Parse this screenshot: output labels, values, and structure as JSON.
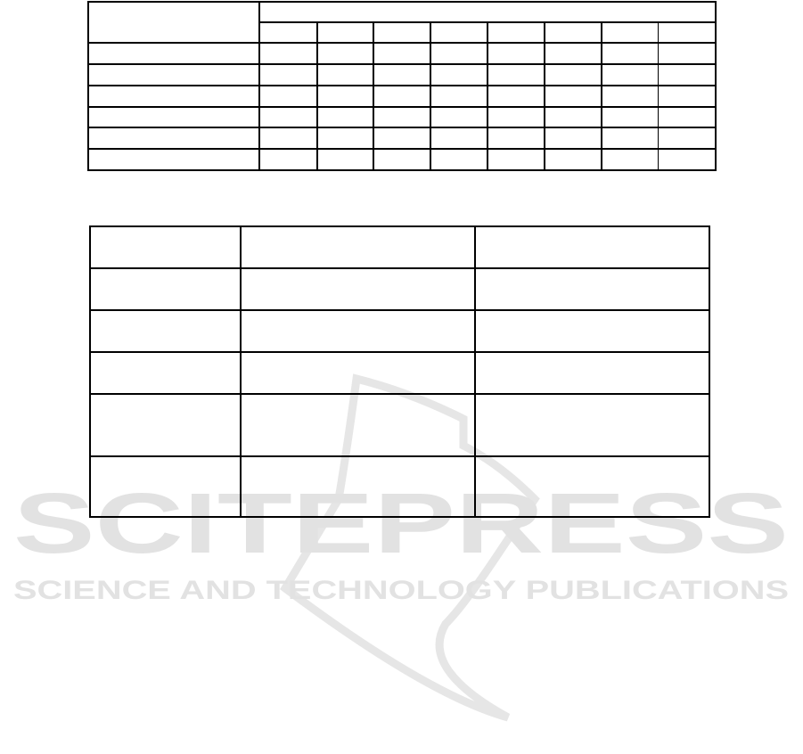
{
  "watermark": {
    "logo_text": "SCITEPRESS",
    "tagline": "SCIENCE AND TECHNOLOGY PUBLICATIONS",
    "color": "#e2e2e2"
  },
  "table_1": {
    "header_rows": 2,
    "body_rows": 6,
    "columns": 9,
    "cells_text": []
  },
  "table_2": {
    "header_rows": 1,
    "body_rows": 5,
    "columns": 3,
    "cells_text": []
  }
}
